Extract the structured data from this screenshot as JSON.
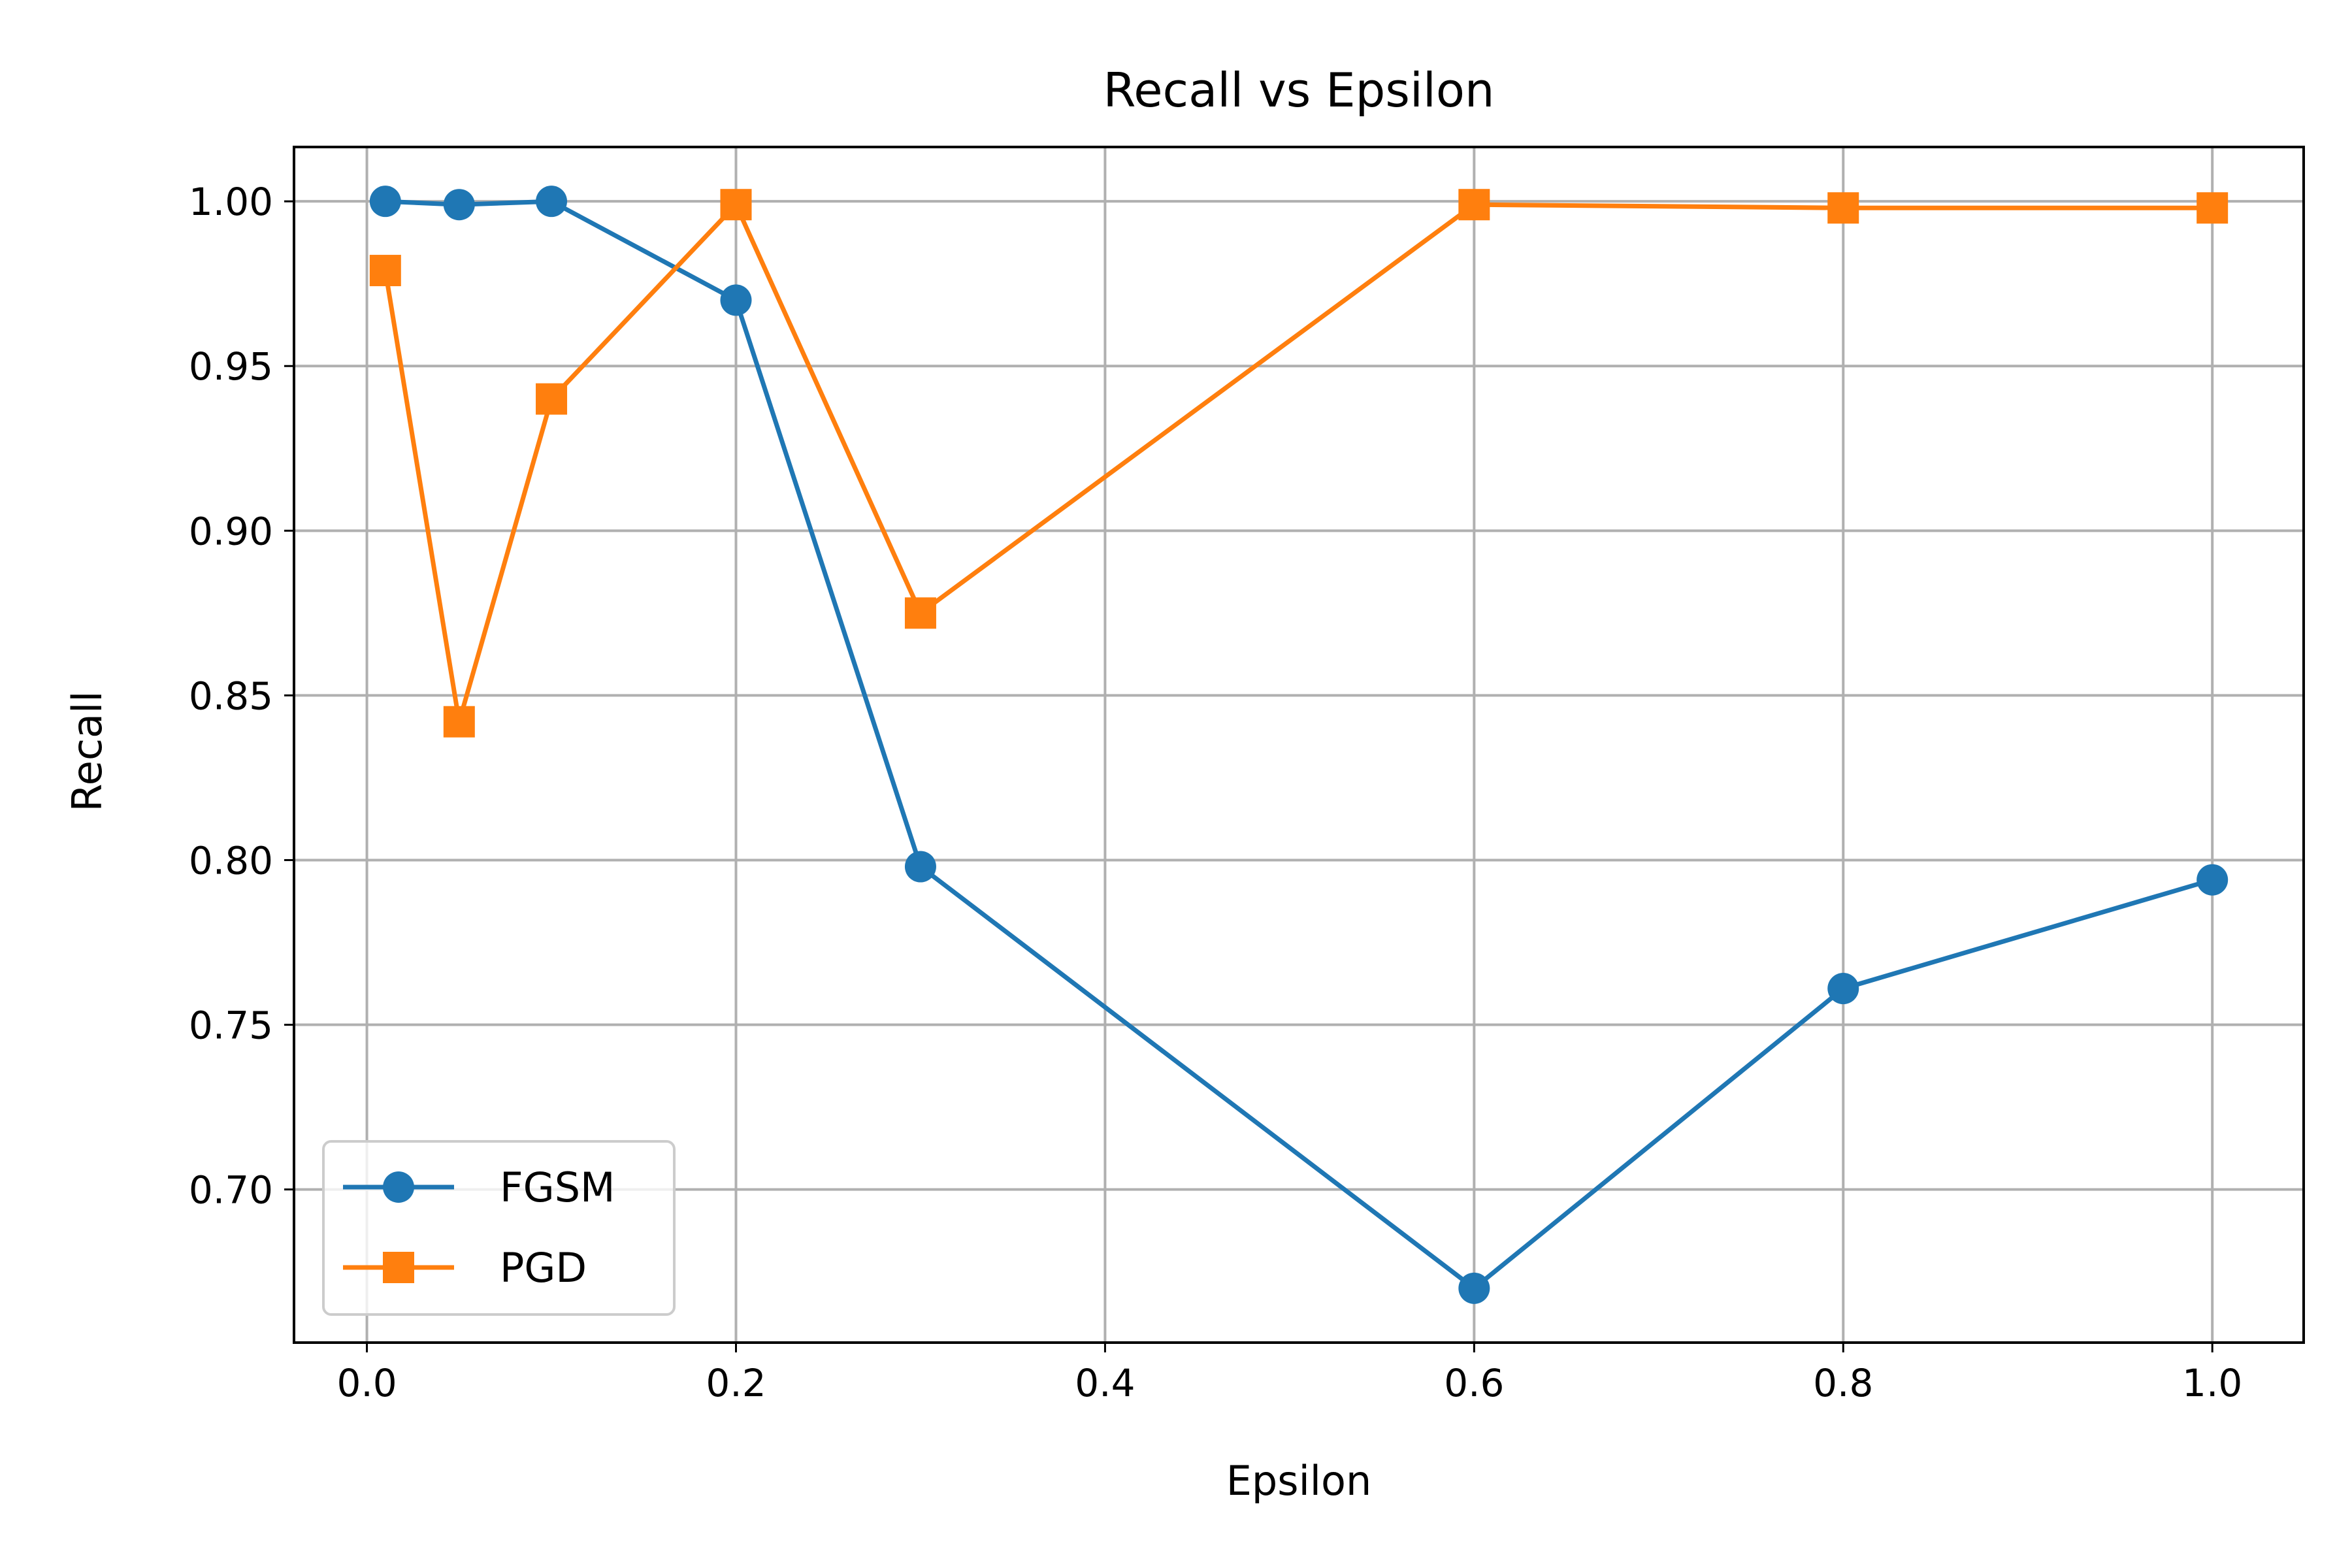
{
  "chart_data": {
    "type": "line",
    "title": "Recall vs Epsilon",
    "xlabel": "Epsilon",
    "ylabel": "Recall",
    "xlim": [
      -0.0395,
      1.0495
    ],
    "ylim": [
      0.6535,
      1.0165
    ],
    "xticks": [
      0.0,
      0.2,
      0.4,
      0.6,
      0.8,
      1.0
    ],
    "xtick_labels": [
      "0.0",
      "0.2",
      "0.4",
      "0.6",
      "0.8",
      "1.0"
    ],
    "yticks": [
      0.7,
      0.75,
      0.8,
      0.85,
      0.9,
      0.95,
      1.0
    ],
    "ytick_labels": [
      "0.70",
      "0.75",
      "0.80",
      "0.85",
      "0.90",
      "0.95",
      "1.00"
    ],
    "grid": true,
    "legend_position": "lower-left",
    "x": [
      0.01,
      0.05,
      0.1,
      0.2,
      0.3,
      0.6,
      0.8,
      1.0
    ],
    "series": [
      {
        "name": "FGSM",
        "marker": "circle",
        "color": "#1f77b4",
        "values": [
          1.0,
          0.999,
          1.0,
          0.97,
          0.798,
          0.67,
          0.761,
          0.794
        ]
      },
      {
        "name": "PGD",
        "marker": "square",
        "color": "#ff7f0e",
        "values": [
          0.979,
          0.842,
          0.94,
          0.999,
          0.875,
          0.999,
          0.998,
          0.998
        ]
      }
    ]
  }
}
